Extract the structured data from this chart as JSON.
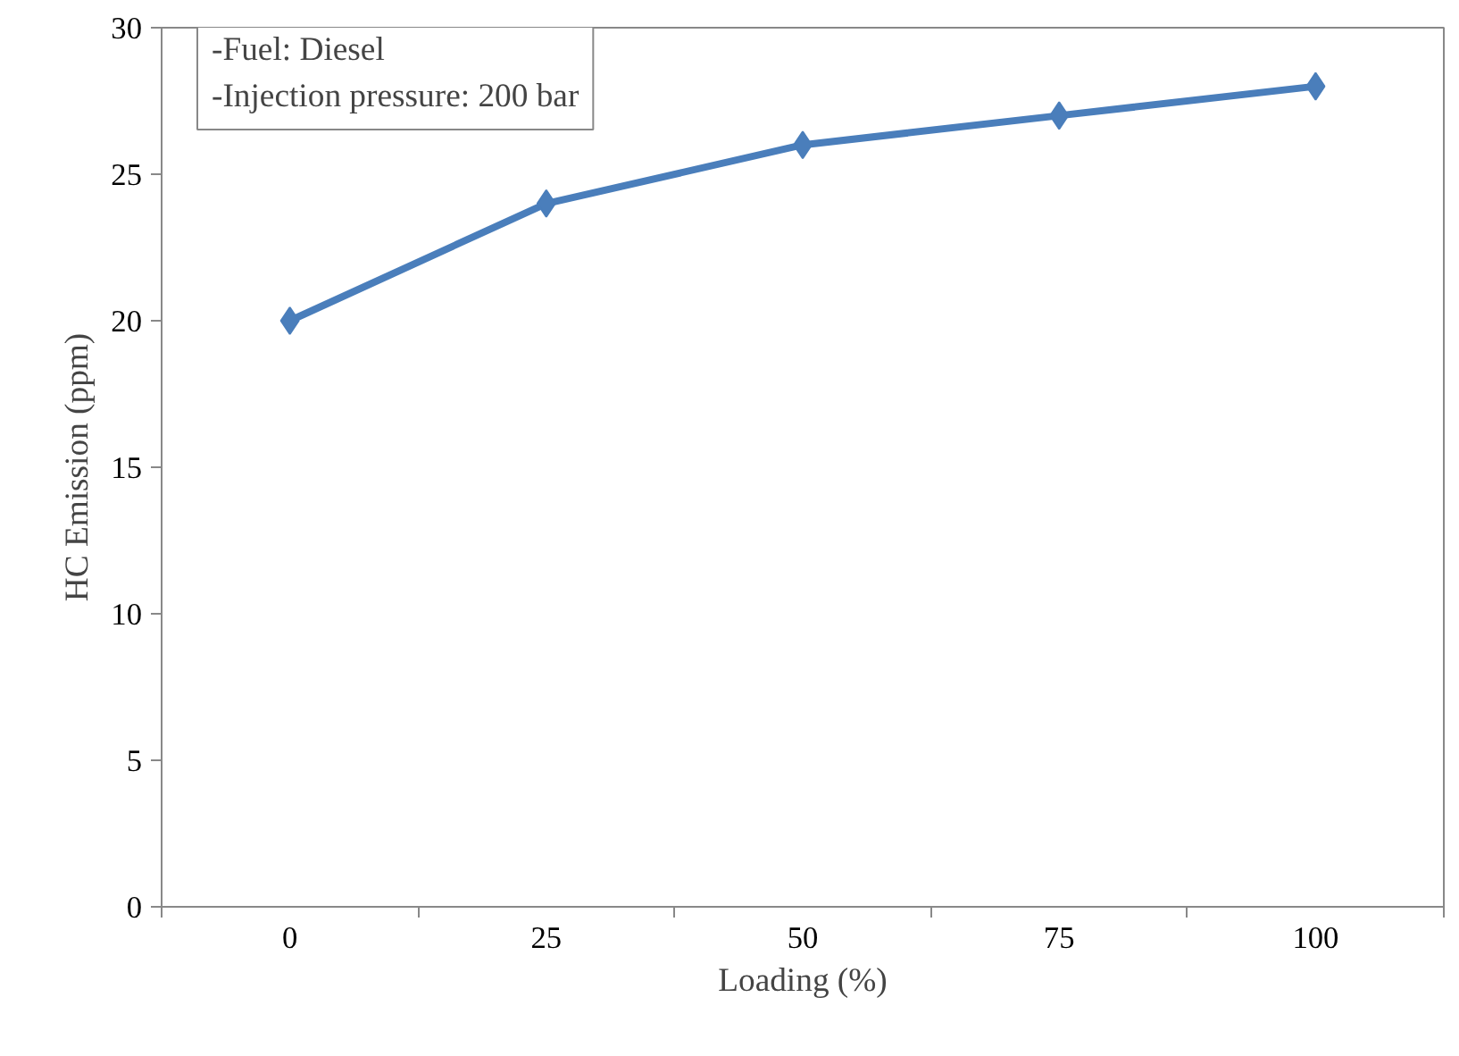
{
  "chart_data": {
    "type": "line",
    "xlabel": "Loading (%)",
    "ylabel": "HC Emission (ppm)",
    "categories": [
      "0",
      "25",
      "50",
      "75",
      "100"
    ],
    "series": [
      {
        "color": "#4a7ebb",
        "values": [
          20,
          24,
          26,
          27,
          28
        ]
      }
    ],
    "ylim": [
      0,
      30
    ],
    "yticks": [
      0,
      5,
      10,
      15,
      20,
      25,
      30
    ],
    "grid": false,
    "marker": "diamond",
    "line_style": "solid",
    "annotations": [
      "-Fuel: Diesel",
      "-Injection pressure: 200 bar"
    ]
  }
}
